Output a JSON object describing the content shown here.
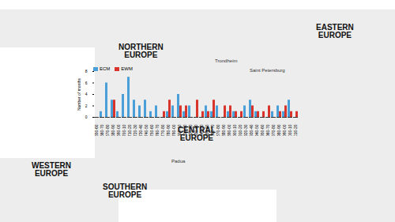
{
  "map_labels": {
    "regions": [
      "NORTHERN EUROPE",
      "EASTERN EUROPE",
      "CENTRAL EUROPE",
      "WESTERN EUROPE",
      "SOUTHERN EUROPE"
    ],
    "cities": [
      "Trondheim",
      "Saint Petersburg",
      "Padua"
    ]
  },
  "chart_data": {
    "type": "bar",
    "y_label": "Number of months",
    "categories": [
      "1650-60",
      "1660-70",
      "1670-80",
      "1680-90",
      "1690-00",
      "1700-10",
      "1710-20",
      "1720-30",
      "1730-40",
      "1740-50",
      "1750-60",
      "1760-70",
      "1770-80",
      "1780-90",
      "1790-00",
      "1800-10",
      "1810-20",
      "1820-30",
      "1830-40",
      "1840-50",
      "1850-60",
      "1860-70",
      "1870-80",
      "1880-90",
      "1890-00",
      "1900-10",
      "1910-20",
      "1920-30",
      "1930-40",
      "1940-50",
      "1950-60",
      "1960-70",
      "1970-80",
      "1980-90",
      "1990-00",
      "2000-10",
      "2010-20"
    ],
    "series": [
      {
        "name": "ECM",
        "color": "#4a9fd8",
        "values": [
          0,
          1,
          6,
          3,
          1,
          4,
          7,
          3,
          2,
          3,
          1,
          2,
          0,
          1,
          2,
          4,
          1,
          2,
          0,
          0,
          2,
          1,
          2,
          0,
          1,
          1,
          0,
          2,
          3,
          1,
          0,
          0,
          1,
          2,
          1,
          3,
          0
        ]
      },
      {
        "name": "EWM",
        "color": "#d9342b",
        "values": [
          0,
          0,
          0,
          3,
          0,
          0,
          0,
          0,
          0,
          0,
          0,
          0,
          1,
          3,
          0,
          2,
          2,
          0,
          3,
          1,
          1,
          3,
          0,
          2,
          2,
          1,
          1,
          0,
          2,
          1,
          1,
          2,
          0,
          1,
          2,
          1,
          1
        ]
      }
    ],
    "ylim": [
      0,
      8
    ],
    "yticks": [
      0,
      2,
      4,
      6,
      8
    ],
    "legend": "top-left"
  }
}
